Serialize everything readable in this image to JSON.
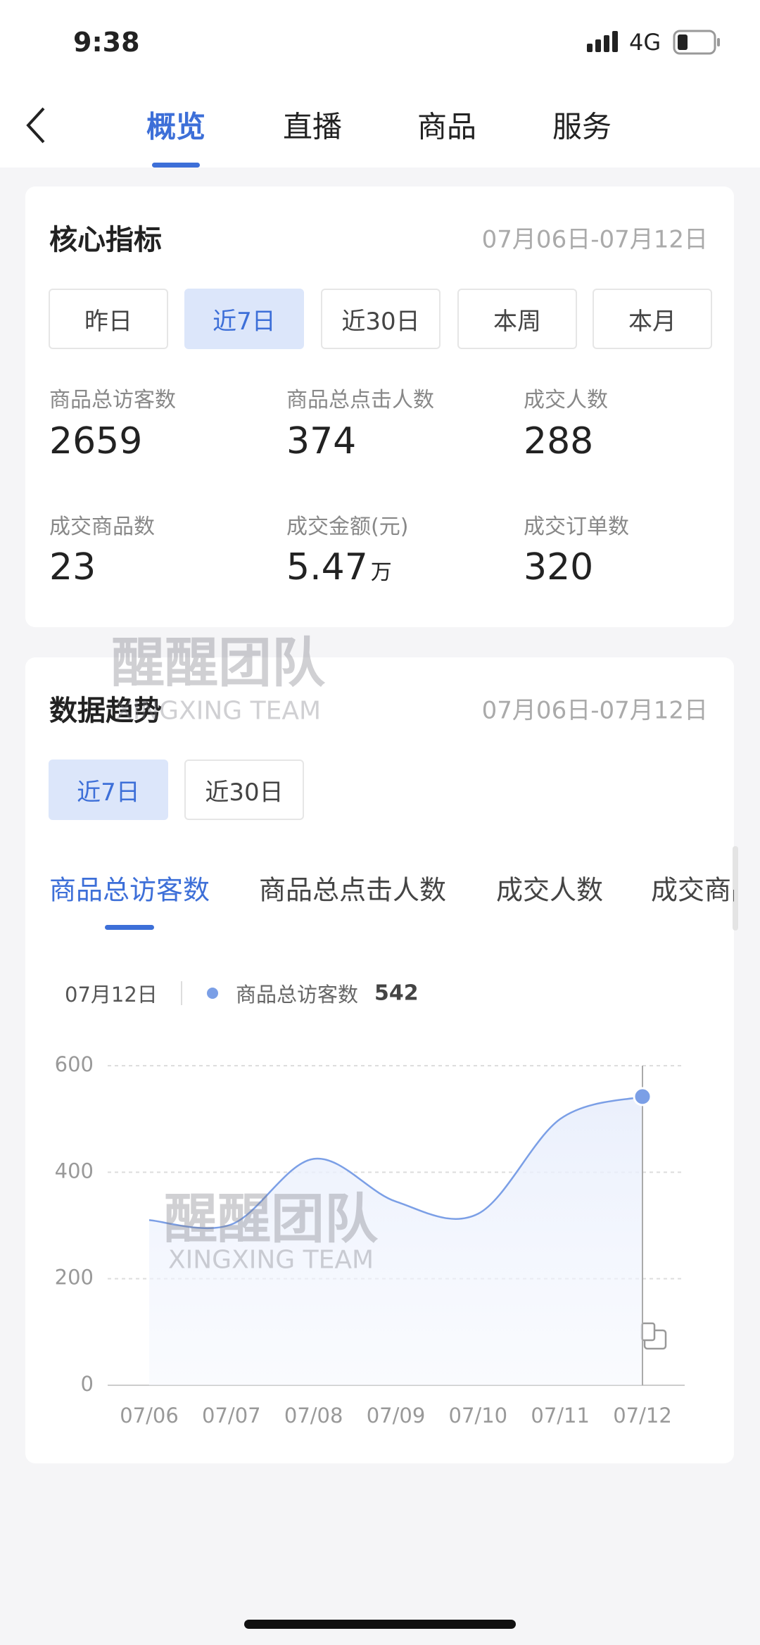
{
  "status_bar": {
    "time": "9:38",
    "network": "4G"
  },
  "nav": {
    "tabs": [
      "概览",
      "直播",
      "商品",
      "服务"
    ],
    "active": 0
  },
  "core_metrics": {
    "title": "核心指标",
    "date_range": "07月06日-07月12日",
    "periods": [
      "昨日",
      "近7日",
      "近30日",
      "本周",
      "本月"
    ],
    "active_period": 1,
    "metrics": [
      {
        "label": "商品总访客数",
        "value": 2659
      },
      {
        "label": "商品总点击人数",
        "value": 374
      },
      {
        "label": "成交人数",
        "value": 288
      },
      {
        "label": "成交商品数",
        "value": 23
      },
      {
        "label": "成交金额(元)",
        "value": 5.47,
        "unit": "万"
      },
      {
        "label": "成交订单数",
        "value": 320
      }
    ]
  },
  "trend": {
    "title": "数据趋势",
    "date_range": "07月06日-07月12日",
    "periods": [
      "近7日",
      "近30日"
    ],
    "active_period": 0,
    "metric_tabs": [
      "商品总访客数",
      "商品总点击人数",
      "成交人数",
      "成交商品数"
    ],
    "active_tab": 0,
    "tooltip_date": "07月12日"
  },
  "chart_data": {
    "type": "line",
    "categories": [
      "07/06",
      "07/07",
      "07/08",
      "07/09",
      "07/10",
      "07/11",
      "07/12"
    ],
    "series": [
      {
        "name": "商品总访客数",
        "color": "#7b9fe6",
        "values": [
          310,
          302,
          425,
          345,
          322,
          500,
          542
        ]
      }
    ],
    "ylim": [
      0,
      600
    ],
    "yticks": [
      0,
      200,
      400,
      600
    ],
    "grid": true
  },
  "watermark": {
    "text": "醒醒团队",
    "subtext": "XINGXING TEAM"
  }
}
